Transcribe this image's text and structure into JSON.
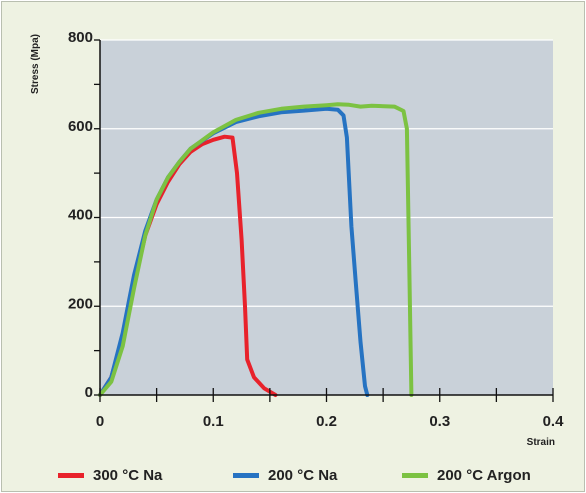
{
  "chart_data": {
    "type": "line",
    "title": "",
    "xlabel": "Strain",
    "ylabel": "Stress (Mpa)",
    "xlim": [
      0,
      0.4
    ],
    "ylim": [
      0,
      800
    ],
    "x_ticks": [
      "0",
      "0.1",
      "0.2",
      "0.3",
      "0.4"
    ],
    "y_ticks": [
      "0",
      "200",
      "400",
      "600",
      "800"
    ],
    "grid": "horizontal",
    "legend_position": "bottom",
    "plot_background": "#c9d1d9",
    "series": [
      {
        "name": "300 °C Na",
        "color": "#e8222b",
        "points": [
          [
            0,
            0
          ],
          [
            0.01,
            40
          ],
          [
            0.02,
            130
          ],
          [
            0.03,
            250
          ],
          [
            0.04,
            360
          ],
          [
            0.05,
            430
          ],
          [
            0.06,
            480
          ],
          [
            0.07,
            520
          ],
          [
            0.08,
            548
          ],
          [
            0.09,
            565
          ],
          [
            0.1,
            575
          ],
          [
            0.11,
            582
          ],
          [
            0.117,
            580
          ],
          [
            0.121,
            500
          ],
          [
            0.125,
            350
          ],
          [
            0.128,
            200
          ],
          [
            0.13,
            80
          ],
          [
            0.136,
            40
          ],
          [
            0.145,
            15
          ],
          [
            0.155,
            0
          ]
        ]
      },
      {
        "name": "200 °C Na",
        "color": "#2673c2",
        "points": [
          [
            0,
            0
          ],
          [
            0.01,
            40
          ],
          [
            0.02,
            140
          ],
          [
            0.03,
            270
          ],
          [
            0.04,
            370
          ],
          [
            0.05,
            440
          ],
          [
            0.06,
            490
          ],
          [
            0.07,
            525
          ],
          [
            0.08,
            555
          ],
          [
            0.1,
            590
          ],
          [
            0.12,
            615
          ],
          [
            0.14,
            628
          ],
          [
            0.16,
            637
          ],
          [
            0.18,
            641
          ],
          [
            0.2,
            645
          ],
          [
            0.21,
            643
          ],
          [
            0.215,
            630
          ],
          [
            0.218,
            580
          ],
          [
            0.222,
            380
          ],
          [
            0.226,
            250
          ],
          [
            0.23,
            120
          ],
          [
            0.234,
            20
          ],
          [
            0.236,
            0
          ]
        ]
      },
      {
        "name": "200 °C Argon",
        "color": "#7cc242",
        "points": [
          [
            0,
            0
          ],
          [
            0.01,
            30
          ],
          [
            0.02,
            110
          ],
          [
            0.03,
            240
          ],
          [
            0.04,
            360
          ],
          [
            0.05,
            440
          ],
          [
            0.06,
            490
          ],
          [
            0.07,
            525
          ],
          [
            0.08,
            555
          ],
          [
            0.1,
            592
          ],
          [
            0.12,
            620
          ],
          [
            0.14,
            636
          ],
          [
            0.16,
            645
          ],
          [
            0.18,
            650
          ],
          [
            0.2,
            653
          ],
          [
            0.21,
            655
          ],
          [
            0.22,
            654
          ],
          [
            0.23,
            650
          ],
          [
            0.24,
            652
          ],
          [
            0.26,
            650
          ],
          [
            0.268,
            640
          ],
          [
            0.271,
            600
          ],
          [
            0.273,
            300
          ],
          [
            0.275,
            0
          ]
        ]
      }
    ]
  }
}
